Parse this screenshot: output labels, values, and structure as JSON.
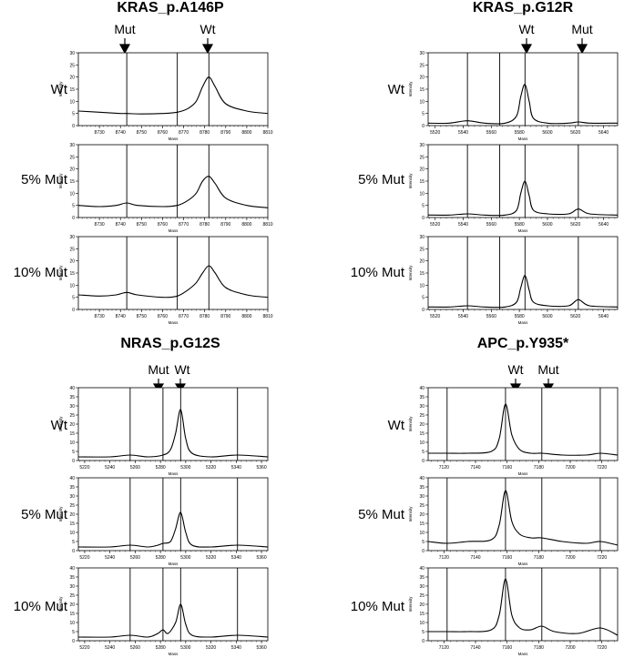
{
  "panels": [
    {
      "title": "KRAS_p.A146P",
      "markers": [
        "Mut",
        "Wt"
      ],
      "rows": [
        "Wt",
        "5% Mut",
        "10% Mut"
      ]
    },
    {
      "title": "KRAS_p.G12R",
      "markers": [
        "Wt",
        "Mut"
      ],
      "rows": [
        "Wt",
        "5% Mut",
        "10% Mut"
      ]
    },
    {
      "title": "NRAS_p.G12S",
      "markers": [
        "Mut",
        "Wt"
      ],
      "rows": [
        "Wt",
        "5% Mut",
        "10% Mut"
      ]
    },
    {
      "title": "APC_p.Y935*",
      "markers": [
        "Wt",
        "Mut"
      ],
      "rows": [
        "Wt",
        "5% Mut",
        "10% Mut"
      ]
    }
  ],
  "chart_data": [
    {
      "type": "line",
      "panel": "KRAS_p.A146P",
      "xlabel": "Mass",
      "ylabel": "Intensity",
      "xlim": [
        8720,
        8810
      ],
      "xticks": [
        8730,
        8740,
        8750,
        8760,
        8770,
        8780,
        8790,
        8800,
        8810
      ],
      "ylim": [
        0,
        30
      ],
      "yticks": [
        0,
        5,
        10,
        15,
        20,
        25,
        30
      ],
      "vlines": [
        8743,
        8767,
        8782
      ],
      "peaks": [
        8743,
        8782
      ],
      "series": [
        {
          "name": "Wt",
          "x": [
            8720,
            8730,
            8740,
            8743,
            8750,
            8760,
            8767,
            8772,
            8776,
            8779,
            8782,
            8785,
            8790,
            8800,
            8810
          ],
          "y": [
            6,
            5.5,
            5,
            5,
            4.8,
            5,
            5.5,
            7,
            10,
            16,
            20,
            16,
            9,
            6,
            5
          ]
        },
        {
          "name": "5% Mut",
          "x": [
            8720,
            8730,
            8738,
            8743,
            8748,
            8760,
            8767,
            8772,
            8776,
            8779,
            8782,
            8785,
            8790,
            8800,
            8810
          ],
          "y": [
            5,
            4.5,
            5,
            6,
            5,
            4.5,
            5,
            7,
            10,
            15,
            17,
            14,
            8,
            5,
            4
          ]
        },
        {
          "name": "10% Mut",
          "x": [
            8720,
            8730,
            8738,
            8743,
            8748,
            8760,
            8767,
            8772,
            8776,
            8779,
            8782,
            8785,
            8790,
            8800,
            8810
          ],
          "y": [
            6,
            5.5,
            6,
            7,
            6,
            5,
            5.5,
            8,
            11,
            15,
            18,
            15,
            9,
            6,
            5
          ]
        }
      ]
    },
    {
      "type": "line",
      "panel": "KRAS_p.G12R",
      "xlabel": "Mass",
      "ylabel": "Intensity",
      "xlim": [
        5515,
        5650
      ],
      "xticks": [
        5520,
        5540,
        5560,
        5580,
        5600,
        5620,
        5640
      ],
      "ylim": [
        0,
        30
      ],
      "yticks": [
        0,
        5,
        10,
        15,
        20,
        25,
        30
      ],
      "vlines": [
        5543,
        5566,
        5584,
        5622
      ],
      "peaks": [
        5584,
        5622
      ],
      "series": [
        {
          "name": "Wt",
          "x": [
            5515,
            5530,
            5543,
            5555,
            5570,
            5578,
            5581,
            5584,
            5587,
            5590,
            5600,
            5615,
            5622,
            5630,
            5650
          ],
          "y": [
            1,
            1,
            2,
            1,
            1,
            4,
            12,
            17,
            10,
            3,
            1,
            1,
            1.5,
            1,
            1
          ]
        },
        {
          "name": "5% Mut",
          "x": [
            5515,
            5530,
            5543,
            5555,
            5570,
            5578,
            5581,
            5584,
            5587,
            5590,
            5600,
            5615,
            5622,
            5630,
            5650
          ],
          "y": [
            1,
            1,
            1.5,
            1,
            1,
            3,
            10,
            15,
            9,
            3,
            1.5,
            1.5,
            3.5,
            1.5,
            1
          ]
        },
        {
          "name": "10% Mut",
          "x": [
            5515,
            5530,
            5543,
            5555,
            5570,
            5578,
            5581,
            5584,
            5587,
            5590,
            5600,
            5615,
            5622,
            5630,
            5650
          ],
          "y": [
            1,
            1,
            1.5,
            1,
            1,
            3,
            9,
            14,
            8,
            3,
            1.5,
            1.5,
            4,
            1.5,
            1
          ]
        }
      ]
    },
    {
      "type": "line",
      "panel": "NRAS_p.G12S",
      "xlabel": "Mass",
      "ylabel": "Intensity",
      "xlim": [
        5215,
        5365
      ],
      "xticks": [
        5220,
        5240,
        5260,
        5280,
        5300,
        5320,
        5340,
        5360
      ],
      "ylim": [
        0,
        40
      ],
      "yticks": [
        0,
        5,
        10,
        15,
        20,
        25,
        30,
        35,
        40
      ],
      "vlines": [
        5256,
        5282,
        5296,
        5341
      ],
      "peaks": [
        5282,
        5296
      ],
      "series": [
        {
          "name": "Wt",
          "x": [
            5215,
            5240,
            5256,
            5270,
            5282,
            5288,
            5292,
            5296,
            5300,
            5305,
            5320,
            5341,
            5365
          ],
          "y": [
            2,
            2,
            3,
            2,
            3,
            6,
            15,
            28,
            12,
            4,
            2,
            3,
            2
          ]
        },
        {
          "name": "5% Mut",
          "x": [
            5215,
            5240,
            5256,
            5270,
            5278,
            5282,
            5288,
            5292,
            5296,
            5300,
            5305,
            5320,
            5341,
            5365
          ],
          "y": [
            2,
            2,
            3,
            2,
            3,
            4,
            5,
            12,
            21,
            10,
            3,
            2,
            3,
            2
          ]
        },
        {
          "name": "10% Mut",
          "x": [
            5215,
            5240,
            5256,
            5270,
            5278,
            5282,
            5286,
            5292,
            5296,
            5300,
            5305,
            5320,
            5341,
            5365
          ],
          "y": [
            2,
            2,
            3,
            2,
            4,
            6,
            4,
            10,
            20,
            9,
            3,
            2,
            3,
            2
          ]
        }
      ]
    },
    {
      "type": "line",
      "panel": "APC_p.Y935*",
      "xlabel": "Mass",
      "ylabel": "Intensity",
      "xlim": [
        7110,
        7230
      ],
      "xticks": [
        7120,
        7140,
        7160,
        7180,
        7200,
        7220
      ],
      "ylim": [
        0,
        40
      ],
      "yticks": [
        0,
        5,
        10,
        15,
        20,
        25,
        30,
        35,
        40
      ],
      "vlines": [
        7122,
        7159,
        7182,
        7219
      ],
      "peaks": [
        7159,
        7182
      ],
      "series": [
        {
          "name": "Wt",
          "x": [
            7110,
            7122,
            7135,
            7150,
            7155,
            7159,
            7163,
            7168,
            7175,
            7182,
            7195,
            7210,
            7219,
            7230
          ],
          "y": [
            4,
            4,
            4,
            5,
            12,
            31,
            14,
            6,
            4,
            4,
            3,
            3,
            4,
            3
          ]
        },
        {
          "name": "5% Mut",
          "x": [
            7110,
            7122,
            7135,
            7150,
            7155,
            7159,
            7163,
            7168,
            7175,
            7182,
            7195,
            7210,
            7219,
            7230
          ],
          "y": [
            5,
            4,
            5,
            6,
            14,
            33,
            16,
            9,
            7,
            7,
            5,
            4,
            5,
            3
          ]
        },
        {
          "name": "10% Mut",
          "x": [
            7110,
            7122,
            7135,
            7150,
            7155,
            7159,
            7163,
            7168,
            7175,
            7182,
            7190,
            7205,
            7219,
            7230
          ],
          "y": [
            5,
            5,
            5,
            6,
            14,
            34,
            14,
            7,
            6,
            8,
            5,
            4,
            7,
            3
          ]
        }
      ]
    }
  ]
}
